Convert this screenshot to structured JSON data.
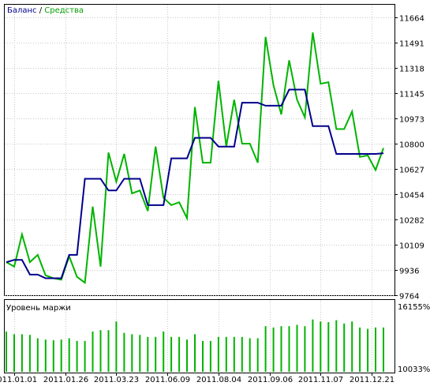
{
  "chart_data": [
    {
      "type": "line",
      "legend": {
        "balance_label": "Баланс",
        "separator": " / ",
        "equity_label": "Средства",
        "placement": "top-left"
      },
      "colors": {
        "balance": "#00008b",
        "equity": "#00b400",
        "grid": "#c8c8c8",
        "frame": "#000000",
        "background": "#ffffff",
        "panel_bg": "#ffffff"
      },
      "grid": true,
      "y_axis_position": "right",
      "ylim": [
        9764,
        11750
      ],
      "y_ticks": [
        "11664",
        "11491",
        "11318",
        "11145",
        "10973",
        "10800",
        "10627",
        "10454",
        "10282",
        "10109",
        "9936",
        "9764"
      ],
      "y_tick_values": [
        11664,
        11491,
        11318,
        11145,
        10973,
        10800,
        10627,
        10454,
        10282,
        10109,
        9936,
        9764
      ],
      "x_tick_labels": [
        "2011.01.01",
        "2011.01.26",
        "2011.03.23",
        "2011.06.09",
        "2011.08.04",
        "2011.09.06",
        "2011.11.07",
        "2011.12.21"
      ],
      "x_tick_index": [
        1,
        7.5,
        14,
        20.5,
        27,
        33.5,
        40,
        46.5
      ],
      "x_count": 49,
      "series": [
        {
          "name": "Баланс",
          "values": [
            9990,
            10005,
            10005,
            9905,
            9905,
            9880,
            9880,
            9880,
            10040,
            10040,
            10560,
            10560,
            10560,
            10480,
            10480,
            10560,
            10560,
            10560,
            10380,
            10380,
            10380,
            10700,
            10700,
            10700,
            10840,
            10840,
            10840,
            10780,
            10780,
            10780,
            11080,
            11080,
            11080,
            11060,
            11060,
            11060,
            11170,
            11170,
            11170,
            10920,
            10920,
            10920,
            10730,
            10730,
            10730,
            10730,
            10730,
            10730,
            10735
          ]
        },
        {
          "name": "Средства",
          "values": [
            9990,
            9960,
            10180,
            9990,
            10040,
            9900,
            9880,
            9870,
            10030,
            9890,
            9850,
            10370,
            9960,
            10740,
            10540,
            10730,
            10460,
            10480,
            10340,
            10780,
            10430,
            10380,
            10400,
            10290,
            11050,
            10670,
            10670,
            11230,
            10780,
            11100,
            10800,
            10800,
            10670,
            11530,
            11200,
            11000,
            11370,
            11100,
            10980,
            11560,
            11210,
            11220,
            10900,
            10900,
            11020,
            10710,
            10720,
            10620,
            10770
          ]
        }
      ]
    },
    {
      "type": "bar",
      "title": "Уровень маржи",
      "y_ticks": [
        "16155%",
        "10033%"
      ],
      "ylim": [
        0,
        1
      ],
      "values": [
        0.6,
        0.56,
        0.56,
        0.55,
        0.5,
        0.48,
        0.47,
        0.48,
        0.5,
        0.46,
        0.46,
        0.6,
        0.62,
        0.62,
        0.75,
        0.58,
        0.56,
        0.55,
        0.52,
        0.52,
        0.6,
        0.52,
        0.52,
        0.48,
        0.56,
        0.46,
        0.46,
        0.52,
        0.52,
        0.52,
        0.52,
        0.5,
        0.5,
        0.68,
        0.66,
        0.68,
        0.68,
        0.7,
        0.68,
        0.78,
        0.75,
        0.74,
        0.77,
        0.72,
        0.75,
        0.66,
        0.64,
        0.66,
        0.66
      ]
    }
  ]
}
